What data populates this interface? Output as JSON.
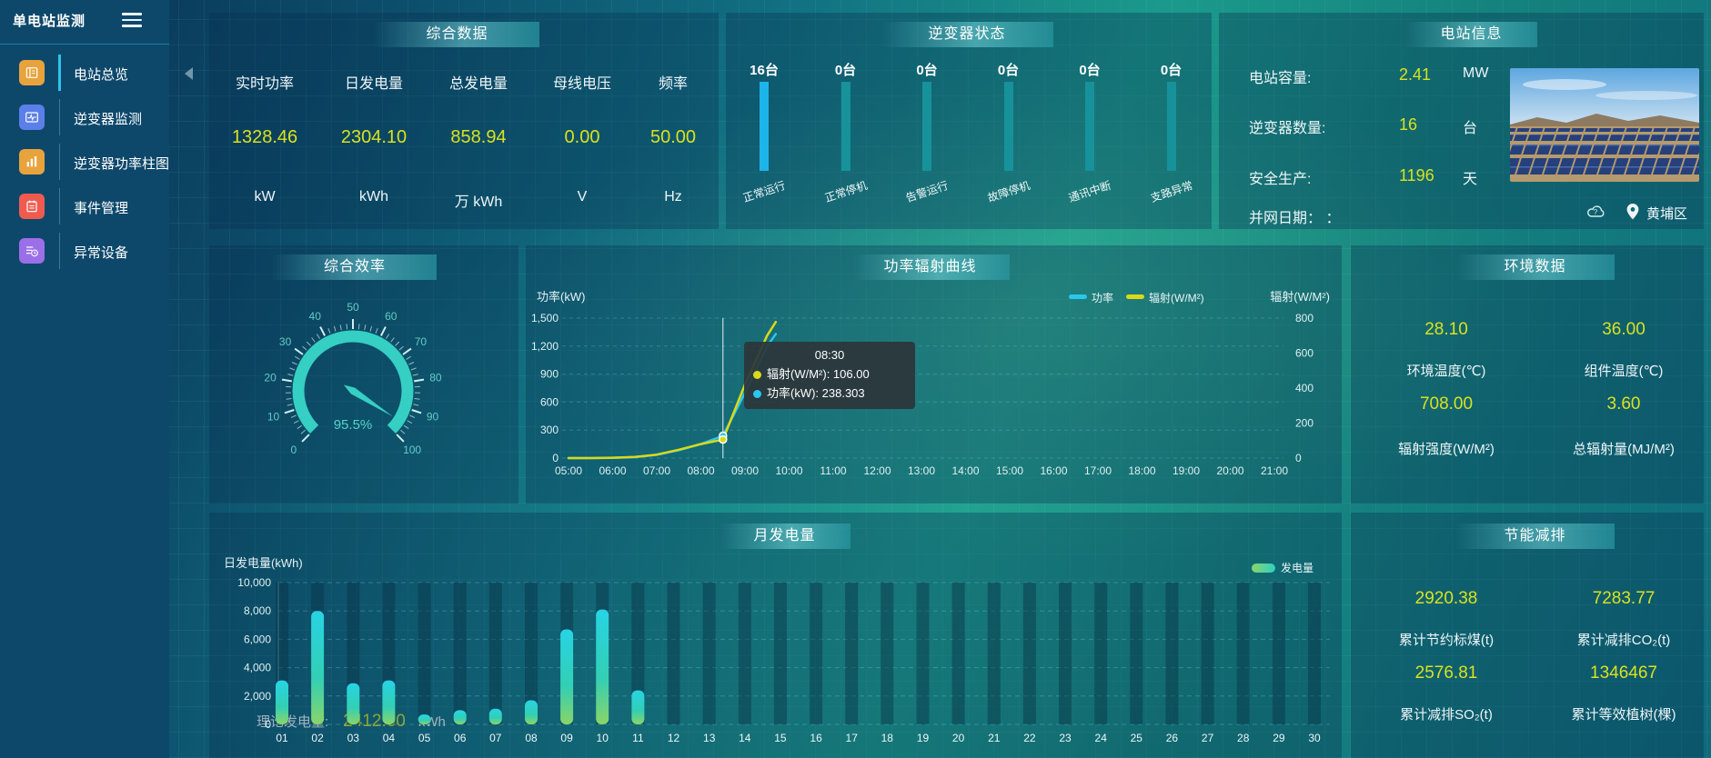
{
  "colors": {
    "accent_value": "#d9e21f",
    "power_line": "#29c7ee",
    "radiation_line": "#d9d919",
    "inverter_active_bar": "#1db4e9",
    "inverter_idle_bar": "#17929b",
    "gauge": "#35cfc4",
    "title_text": "#ffffff"
  },
  "sidebar": {
    "title": "单电站监测",
    "items": [
      {
        "label": "电站总览",
        "icon": "station-overview",
        "color": "#e8a33d",
        "active": true
      },
      {
        "label": "逆变器监测",
        "icon": "inverter-monitor",
        "color": "#5b7fe8",
        "active": false
      },
      {
        "label": "逆变器功率柱图",
        "icon": "inverter-power-bars",
        "color": "#e8a33d",
        "active": false
      },
      {
        "label": "事件管理",
        "icon": "event-management",
        "color": "#f05b50",
        "active": false
      },
      {
        "label": "异常设备",
        "icon": "abnormal-devices",
        "color": "#9b6fe8",
        "active": false
      }
    ]
  },
  "summary": {
    "title": "综合数据",
    "metrics": [
      {
        "label": "实时功率",
        "value": "1328.46",
        "unit": "kW"
      },
      {
        "label": "日发电量",
        "value": "2304.10",
        "unit": "kWh"
      },
      {
        "label": "总发电量",
        "value": "858.94",
        "unit": "万 kWh"
      },
      {
        "label": "母线电压",
        "value": "0.00",
        "unit": "V"
      },
      {
        "label": "频率",
        "value": "50.00",
        "unit": "Hz"
      }
    ]
  },
  "inverter_status": {
    "title": "逆变器状态",
    "bars": [
      {
        "count": "16台",
        "label": "正常运行",
        "highlight": true
      },
      {
        "count": "0台",
        "label": "正常停机",
        "highlight": false
      },
      {
        "count": "0台",
        "label": "告警运行",
        "highlight": false
      },
      {
        "count": "0台",
        "label": "故障停机",
        "highlight": false
      },
      {
        "count": "0台",
        "label": "通讯中断",
        "highlight": false
      },
      {
        "count": "0台",
        "label": "支路异常",
        "highlight": false
      }
    ]
  },
  "station_info": {
    "title": "电站信息",
    "rows": [
      {
        "label": "电站容量:",
        "value": "2.41",
        "unit": "MW"
      },
      {
        "label": "逆变器数量:",
        "value": "16",
        "unit": "台"
      },
      {
        "label": "安全生产:",
        "value": "1196",
        "unit": "天"
      }
    ],
    "grid_date": "并网日期：  ：",
    "location": "黄埔区"
  },
  "efficiency": {
    "title": "综合效率",
    "theory_label": "理论发电量:",
    "theory_value": "2412.60",
    "theory_unit": "kWh"
  },
  "power_curve": {
    "title": "功率辐射曲线"
  },
  "environment": {
    "title": "环境数据",
    "metrics": [
      {
        "value": "28.10",
        "label": "环境温度(℃)"
      },
      {
        "value": "36.00",
        "label": "组件温度(℃)"
      },
      {
        "value": "708.00",
        "label": "辐射强度(W/M²)"
      },
      {
        "value": "3.60",
        "label": "总辐射量(MJ/M²)"
      }
    ]
  },
  "monthly": {
    "title": "月发电量"
  },
  "saving": {
    "title": "节能减排",
    "metrics": [
      {
        "value": "2920.38",
        "label": "累计节约标煤(t)"
      },
      {
        "value": "7283.77",
        "label": "累计减排CO₂(t)"
      },
      {
        "value": "2576.81",
        "label": "累计减排SO₂(t)"
      },
      {
        "value": "1346467",
        "label": "累计等效植树(棵)"
      }
    ]
  },
  "chart_data": [
    {
      "type": "gauge",
      "title": "综合效率",
      "min": 0,
      "max": 100,
      "tick_step": 10,
      "minor_step": 2,
      "value": 95.5,
      "value_label": "95.5%",
      "color": "#35cfc4"
    },
    {
      "type": "line",
      "title": "功率辐射曲线",
      "x_labels": [
        "05:00",
        "06:00",
        "07:00",
        "08:00",
        "09:00",
        "10:00",
        "11:00",
        "12:00",
        "13:00",
        "14:00",
        "15:00",
        "16:00",
        "17:00",
        "18:00",
        "19:00",
        "20:00",
        "21:00"
      ],
      "left_axis": {
        "label": "功率(kW)",
        "ticks": [
          0,
          300,
          600,
          900,
          1200,
          1500
        ],
        "max": 1500
      },
      "right_axis": {
        "label": "辐射(W/M²)",
        "ticks": [
          0,
          200,
          400,
          600,
          800
        ],
        "max": 800
      },
      "legend": [
        {
          "name": "功率",
          "color": "#29c7ee"
        },
        {
          "name": "辐射(W/M²)",
          "color": "#d9d919"
        }
      ],
      "series": [
        {
          "name": "功率",
          "color": "#29c7ee",
          "axis": "left",
          "points": [
            [
              5,
              0
            ],
            [
              5.5,
              0
            ],
            [
              6,
              3
            ],
            [
              6.5,
              10
            ],
            [
              7,
              35
            ],
            [
              7.5,
              85
            ],
            [
              8,
              150
            ],
            [
              8.5,
              238.303
            ],
            [
              9,
              700
            ],
            [
              9.5,
              1200
            ],
            [
              9.7,
              1330
            ]
          ]
        },
        {
          "name": "辐射(W/M²)",
          "color": "#d9d919",
          "axis": "right",
          "points": [
            [
              5,
              0
            ],
            [
              5.5,
              0
            ],
            [
              6,
              2
            ],
            [
              6.5,
              6
            ],
            [
              7,
              20
            ],
            [
              7.5,
              48
            ],
            [
              8,
              80
            ],
            [
              8.5,
              106
            ],
            [
              9,
              420
            ],
            [
              9.5,
              700
            ],
            [
              9.7,
              778
            ]
          ]
        }
      ],
      "hover": {
        "t": 8.5,
        "tooltip": {
          "title": "08:30",
          "rows": [
            {
              "name": "辐射(W/M²)",
              "value": "106.00",
              "color": "#d9d919"
            },
            {
              "name": "功率(kW)",
              "value": "238.303",
              "color": "#29c7ee"
            }
          ]
        }
      }
    },
    {
      "type": "bar",
      "title": "月发电量",
      "ylabel": "日发电量(kWh)",
      "legend": "发电量",
      "ylim": [
        0,
        10000
      ],
      "yticks": [
        0,
        2000,
        4000,
        6000,
        8000,
        10000
      ],
      "categories": [
        "01",
        "02",
        "03",
        "04",
        "05",
        "06",
        "07",
        "08",
        "09",
        "10",
        "11",
        "12",
        "13",
        "14",
        "15",
        "16",
        "17",
        "18",
        "19",
        "20",
        "21",
        "22",
        "23",
        "24",
        "25",
        "26",
        "27",
        "28",
        "29",
        "30"
      ],
      "values": [
        3100,
        8000,
        2900,
        3100,
        700,
        1000,
        1100,
        1700,
        6700,
        8100,
        2400,
        0,
        0,
        0,
        0,
        0,
        0,
        0,
        0,
        0,
        0,
        0,
        0,
        0,
        0,
        0,
        0,
        0,
        0,
        0
      ]
    }
  ]
}
